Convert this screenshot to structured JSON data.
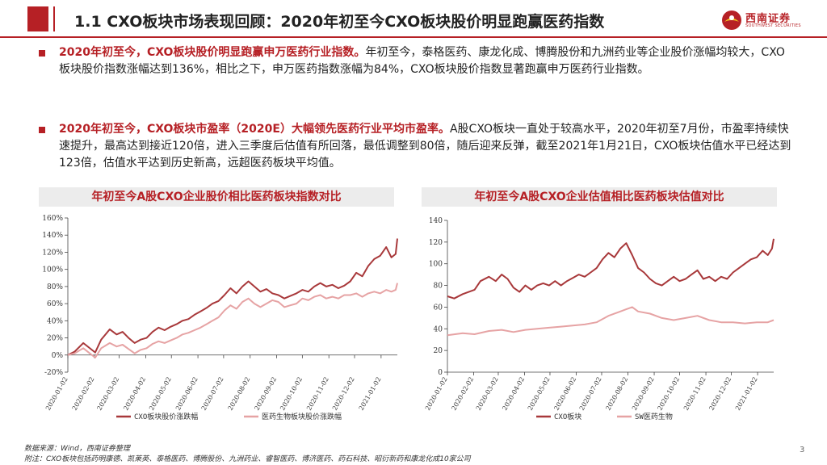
{
  "header": {
    "title": "1.1 CXO板块市场表现回顾：2020年初至今CXO板块股价明显跑赢医药指数",
    "brand_cn": "西南证券",
    "brand_en": "SOUTHWEST SECURITIES"
  },
  "bullets": [
    {
      "highlight": "2020年初至今，CXO板块股价明显跑赢申万医药行业指数。",
      "text": "年初至今，泰格医药、康龙化成、博腾股份和九洲药业等企业股价涨幅均较大，CXO板块股价指数涨幅达到136%，相比之下，申万医药指数涨幅为84%，CXO板块股价指数显著跑赢申万医药行业指数。"
    },
    {
      "highlight": "2020年初至今，CXO板块市盈率（2020E）大幅领先医药行业平均市盈率。",
      "text": "A股CXO板块一直处于较高水平，2020年初至7月份，市盈率持续快速提升，最高达到接近120倍，进入三季度后估值有所回落，最低调整到80倍，随后迎来反弹，截至2021年1月21日，CXO板块估值水平已经达到123倍，估值水平达到历史新高，远超医药板块平均值。"
    }
  ],
  "source": {
    "line1": "数据来源：Wind，西南证券整理",
    "line2": "附注：CXO板块包括药明康德、凯莱英、泰格医药、博腾股份、九洲药业、睿智医药、博济医药、药石科技、昭衍新药和康龙化成10家公司"
  },
  "page_number": "3",
  "colors": {
    "accent": "#b62025",
    "cxo_line": "#a8383a",
    "pharma_line": "#e6a3a4"
  },
  "chart_data": [
    {
      "type": "line",
      "title": "年初至今A股CXO企业股价相比医药板块指数对比",
      "x_tick_labels": [
        "2020-01-02",
        "2020-02-02",
        "2020-03-02",
        "2020-04-02",
        "2020-05-02",
        "2020-06-02",
        "2020-07-02",
        "2020-08-02",
        "2020-09-02",
        "2020-10-02",
        "2020-11-02",
        "2020-12-02",
        "2021-01-02"
      ],
      "x_range": [
        "2020-01-02",
        "2021-01-21"
      ],
      "y_tick_labels": [
        "-20%",
        "0%",
        "20%",
        "40%",
        "60%",
        "80%",
        "100%",
        "120%",
        "140%",
        "160%"
      ],
      "ylim": [
        -20,
        160
      ],
      "legend_position": "bottom",
      "grid": false,
      "series": [
        {
          "name": "CXO板块股价涨跌幅",
          "points": [
            [
              "2020-01-02",
              0
            ],
            [
              "2020-01-10",
              4
            ],
            [
              "2020-01-20",
              14
            ],
            [
              "2020-02-03",
              3
            ],
            [
              "2020-02-10",
              18
            ],
            [
              "2020-02-20",
              30
            ],
            [
              "2020-02-28",
              24
            ],
            [
              "2020-03-06",
              27
            ],
            [
              "2020-03-13",
              20
            ],
            [
              "2020-03-20",
              14
            ],
            [
              "2020-03-27",
              18
            ],
            [
              "2020-04-03",
              20
            ],
            [
              "2020-04-10",
              27
            ],
            [
              "2020-04-17",
              32
            ],
            [
              "2020-04-24",
              29
            ],
            [
              "2020-05-01",
              33
            ],
            [
              "2020-05-08",
              36
            ],
            [
              "2020-05-15",
              40
            ],
            [
              "2020-05-22",
              42
            ],
            [
              "2020-05-29",
              47
            ],
            [
              "2020-06-05",
              51
            ],
            [
              "2020-06-12",
              55
            ],
            [
              "2020-06-19",
              60
            ],
            [
              "2020-06-26",
              63
            ],
            [
              "2020-07-03",
              70
            ],
            [
              "2020-07-10",
              78
            ],
            [
              "2020-07-17",
              72
            ],
            [
              "2020-07-24",
              80
            ],
            [
              "2020-07-31",
              86
            ],
            [
              "2020-08-07",
              80
            ],
            [
              "2020-08-14",
              74
            ],
            [
              "2020-08-21",
              77
            ],
            [
              "2020-08-28",
              72
            ],
            [
              "2020-09-04",
              70
            ],
            [
              "2020-09-11",
              66
            ],
            [
              "2020-09-18",
              69
            ],
            [
              "2020-09-25",
              72
            ],
            [
              "2020-10-02",
              76
            ],
            [
              "2020-10-09",
              74
            ],
            [
              "2020-10-16",
              80
            ],
            [
              "2020-10-23",
              84
            ],
            [
              "2020-10-30",
              80
            ],
            [
              "2020-11-06",
              82
            ],
            [
              "2020-11-13",
              78
            ],
            [
              "2020-11-20",
              81
            ],
            [
              "2020-11-27",
              86
            ],
            [
              "2020-12-04",
              96
            ],
            [
              "2020-12-11",
              92
            ],
            [
              "2020-12-18",
              104
            ],
            [
              "2020-12-25",
              112
            ],
            [
              "2021-01-01",
              116
            ],
            [
              "2021-01-08",
              126
            ],
            [
              "2021-01-14",
              114
            ],
            [
              "2021-01-19",
              118
            ],
            [
              "2021-01-21",
              136
            ]
          ]
        },
        {
          "name": "医药生物板块股价涨跌幅",
          "points": [
            [
              "2020-01-02",
              0
            ],
            [
              "2020-01-10",
              2
            ],
            [
              "2020-01-20",
              8
            ],
            [
              "2020-02-03",
              -3
            ],
            [
              "2020-02-10",
              8
            ],
            [
              "2020-02-20",
              14
            ],
            [
              "2020-02-28",
              10
            ],
            [
              "2020-03-06",
              12
            ],
            [
              "2020-03-13",
              7
            ],
            [
              "2020-03-20",
              2
            ],
            [
              "2020-03-27",
              6
            ],
            [
              "2020-04-03",
              8
            ],
            [
              "2020-04-10",
              13
            ],
            [
              "2020-04-17",
              16
            ],
            [
              "2020-04-24",
              14
            ],
            [
              "2020-05-01",
              17
            ],
            [
              "2020-05-08",
              20
            ],
            [
              "2020-05-15",
              24
            ],
            [
              "2020-05-22",
              26
            ],
            [
              "2020-05-29",
              29
            ],
            [
              "2020-06-05",
              32
            ],
            [
              "2020-06-12",
              36
            ],
            [
              "2020-06-19",
              40
            ],
            [
              "2020-06-26",
              44
            ],
            [
              "2020-07-03",
              52
            ],
            [
              "2020-07-10",
              58
            ],
            [
              "2020-07-17",
              54
            ],
            [
              "2020-07-24",
              62
            ],
            [
              "2020-07-31",
              66
            ],
            [
              "2020-08-07",
              60
            ],
            [
              "2020-08-14",
              56
            ],
            [
              "2020-08-21",
              60
            ],
            [
              "2020-08-28",
              64
            ],
            [
              "2020-09-04",
              62
            ],
            [
              "2020-09-11",
              56
            ],
            [
              "2020-09-18",
              58
            ],
            [
              "2020-09-25",
              60
            ],
            [
              "2020-10-02",
              66
            ],
            [
              "2020-10-09",
              64
            ],
            [
              "2020-10-16",
              68
            ],
            [
              "2020-10-23",
              70
            ],
            [
              "2020-10-30",
              66
            ],
            [
              "2020-11-06",
              68
            ],
            [
              "2020-11-13",
              66
            ],
            [
              "2020-11-20",
              70
            ],
            [
              "2020-11-27",
              70
            ],
            [
              "2020-12-04",
              72
            ],
            [
              "2020-12-11",
              68
            ],
            [
              "2020-12-18",
              72
            ],
            [
              "2020-12-25",
              74
            ],
            [
              "2021-01-01",
              72
            ],
            [
              "2021-01-08",
              76
            ],
            [
              "2021-01-14",
              74
            ],
            [
              "2021-01-19",
              76
            ],
            [
              "2021-01-21",
              84
            ]
          ]
        }
      ]
    },
    {
      "type": "line",
      "title": "年初至今A股CXO企业估值相比医药板块估值对比",
      "x_tick_labels": [
        "2020-01-02",
        "2020-02-02",
        "2020-03-02",
        "2020-04-02",
        "2020-05-02",
        "2020-06-02",
        "2020-07-02",
        "2020-08-02",
        "2020-09-02",
        "2020-10-02",
        "2020-11-02",
        "2020-12-02",
        "2021-01-02"
      ],
      "x_range": [
        "2020-01-02",
        "2021-01-21"
      ],
      "y_tick_labels": [
        "0",
        "20",
        "40",
        "60",
        "80",
        "100",
        "120",
        "140"
      ],
      "ylim": [
        0,
        140
      ],
      "legend_position": "bottom",
      "grid": false,
      "series": [
        {
          "name": "CXO板块",
          "points": [
            [
              "2020-01-02",
              70
            ],
            [
              "2020-01-10",
              68
            ],
            [
              "2020-01-20",
              72
            ],
            [
              "2020-02-03",
              76
            ],
            [
              "2020-02-10",
              84
            ],
            [
              "2020-02-20",
              88
            ],
            [
              "2020-02-28",
              84
            ],
            [
              "2020-03-06",
              90
            ],
            [
              "2020-03-13",
              86
            ],
            [
              "2020-03-20",
              78
            ],
            [
              "2020-03-27",
              74
            ],
            [
              "2020-04-03",
              80
            ],
            [
              "2020-04-10",
              76
            ],
            [
              "2020-04-17",
              80
            ],
            [
              "2020-04-24",
              82
            ],
            [
              "2020-05-01",
              80
            ],
            [
              "2020-05-08",
              84
            ],
            [
              "2020-05-15",
              80
            ],
            [
              "2020-05-22",
              84
            ],
            [
              "2020-05-29",
              87
            ],
            [
              "2020-06-05",
              90
            ],
            [
              "2020-06-12",
              88
            ],
            [
              "2020-06-19",
              92
            ],
            [
              "2020-06-26",
              96
            ],
            [
              "2020-07-03",
              104
            ],
            [
              "2020-07-10",
              110
            ],
            [
              "2020-07-17",
              106
            ],
            [
              "2020-07-24",
              114
            ],
            [
              "2020-07-31",
              119
            ],
            [
              "2020-08-07",
              108
            ],
            [
              "2020-08-14",
              96
            ],
            [
              "2020-08-21",
              92
            ],
            [
              "2020-08-28",
              86
            ],
            [
              "2020-09-04",
              82
            ],
            [
              "2020-09-11",
              80
            ],
            [
              "2020-09-18",
              84
            ],
            [
              "2020-09-25",
              88
            ],
            [
              "2020-10-02",
              84
            ],
            [
              "2020-10-09",
              86
            ],
            [
              "2020-10-16",
              90
            ],
            [
              "2020-10-23",
              94
            ],
            [
              "2020-10-30",
              86
            ],
            [
              "2020-11-06",
              88
            ],
            [
              "2020-11-13",
              84
            ],
            [
              "2020-11-20",
              88
            ],
            [
              "2020-11-27",
              86
            ],
            [
              "2020-12-04",
              92
            ],
            [
              "2020-12-11",
              96
            ],
            [
              "2020-12-18",
              100
            ],
            [
              "2020-12-25",
              104
            ],
            [
              "2021-01-01",
              106
            ],
            [
              "2021-01-08",
              112
            ],
            [
              "2021-01-14",
              108
            ],
            [
              "2021-01-19",
              114
            ],
            [
              "2021-01-21",
              123
            ]
          ]
        },
        {
          "name": "SW医药生物",
          "points": [
            [
              "2020-01-02",
              34
            ],
            [
              "2020-01-20",
              36
            ],
            [
              "2020-02-03",
              35
            ],
            [
              "2020-02-20",
              38
            ],
            [
              "2020-03-06",
              39
            ],
            [
              "2020-03-20",
              37
            ],
            [
              "2020-04-03",
              39
            ],
            [
              "2020-04-17",
              40
            ],
            [
              "2020-05-01",
              41
            ],
            [
              "2020-05-15",
              42
            ],
            [
              "2020-05-29",
              43
            ],
            [
              "2020-06-12",
              44
            ],
            [
              "2020-06-26",
              46
            ],
            [
              "2020-07-10",
              52
            ],
            [
              "2020-07-24",
              56
            ],
            [
              "2020-07-31",
              58
            ],
            [
              "2020-08-07",
              60
            ],
            [
              "2020-08-14",
              56
            ],
            [
              "2020-08-28",
              54
            ],
            [
              "2020-09-11",
              50
            ],
            [
              "2020-09-25",
              48
            ],
            [
              "2020-10-09",
              50
            ],
            [
              "2020-10-23",
              52
            ],
            [
              "2020-11-06",
              48
            ],
            [
              "2020-11-20",
              46
            ],
            [
              "2020-12-04",
              46
            ],
            [
              "2020-12-18",
              45
            ],
            [
              "2021-01-01",
              46
            ],
            [
              "2021-01-14",
              46
            ],
            [
              "2021-01-21",
              48
            ]
          ]
        }
      ]
    }
  ]
}
